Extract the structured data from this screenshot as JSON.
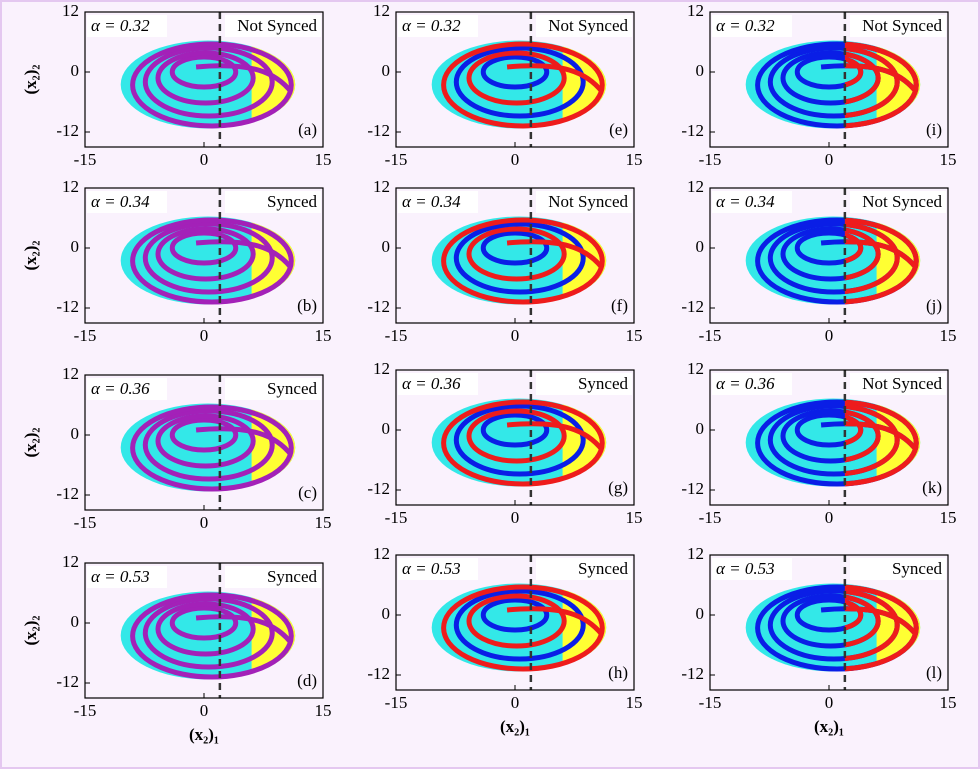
{
  "chart_data": [
    {
      "type": "phase",
      "annotation": "α = 0.32",
      "status": "Not Synced",
      "status_color": "#ff0000",
      "panel": "(a)",
      "ylabel": "(x₂)₂",
      "xlim": [
        -15,
        15
      ],
      "ylim": [
        -15,
        12
      ],
      "xticks": [
        -15,
        0,
        15
      ],
      "yticks": [
        -12,
        0,
        12
      ],
      "vline": 2,
      "palette": [
        "#33e8e8",
        "#ffff33",
        "#a321b8",
        "#a321b8"
      ]
    },
    {
      "type": "phase",
      "annotation": "α = 0.34",
      "status": "Synced",
      "status_color": "#1a8a1a",
      "panel": "(b)",
      "ylabel": "(x₂)₂",
      "xlim": [
        -15,
        15
      ],
      "ylim": [
        -15,
        12
      ],
      "xticks": [
        -15,
        0,
        15
      ],
      "yticks": [
        -12,
        0,
        12
      ],
      "vline": 2,
      "palette": [
        "#33e8e8",
        "#ffff33",
        "#a321b8",
        "#a321b8"
      ]
    },
    {
      "type": "phase",
      "annotation": "α = 0.36",
      "status": "Synced",
      "status_color": "#1a8a1a",
      "panel": "(c)",
      "ylabel": "(x₂)₂",
      "xlim": [
        -15,
        15
      ],
      "ylim": [
        -15,
        12
      ],
      "xticks": [
        -15,
        0,
        15
      ],
      "yticks": [
        -12,
        0,
        12
      ],
      "vline": 2,
      "palette": [
        "#33e8e8",
        "#ffff33",
        "#a321b8",
        "#a321b8"
      ]
    },
    {
      "type": "phase",
      "annotation": "α = 0.53",
      "status": "Synced",
      "status_color": "#1a8a1a",
      "panel": "(d)",
      "ylabel": "(x₂)₂",
      "xlabel": "(x₂)₁",
      "xlim": [
        -15,
        15
      ],
      "ylim": [
        -15,
        12
      ],
      "xticks": [
        -15,
        0,
        15
      ],
      "yticks": [
        -12,
        0,
        12
      ],
      "vline": 2,
      "palette": [
        "#33e8e8",
        "#ffff33",
        "#a321b8",
        "#a321b8"
      ]
    },
    {
      "type": "phase",
      "annotation": "α = 0.32",
      "status": "Not Synced",
      "status_color": "#ff0000",
      "panel": "(e)",
      "xlim": [
        -15,
        15
      ],
      "ylim": [
        -15,
        12
      ],
      "xticks": [
        -15,
        0,
        15
      ],
      "yticks": [
        -12,
        0,
        12
      ],
      "vline": 2,
      "palette": [
        "#33e8e8",
        "#ffff33",
        "#0a1ee6",
        "#ee1c1c"
      ]
    },
    {
      "type": "phase",
      "annotation": "α = 0.34",
      "status": "Not Synced",
      "status_color": "#ff0000",
      "panel": "(f)",
      "xlim": [
        -15,
        15
      ],
      "ylim": [
        -15,
        12
      ],
      "xticks": [
        -15,
        0,
        15
      ],
      "yticks": [
        -12,
        0,
        12
      ],
      "vline": 2,
      "palette": [
        "#33e8e8",
        "#ffff33",
        "#0a1ee6",
        "#ee1c1c"
      ]
    },
    {
      "type": "phase",
      "annotation": "α = 0.36",
      "status": "Synced",
      "status_color": "#1a8a1a",
      "panel": "(g)",
      "xlim": [
        -15,
        15
      ],
      "ylim": [
        -15,
        12
      ],
      "xticks": [
        -15,
        0,
        15
      ],
      "yticks": [
        -12,
        0,
        12
      ],
      "vline": 2,
      "palette": [
        "#33e8e8",
        "#ffff33",
        "#0a1ee6",
        "#ee1c1c"
      ]
    },
    {
      "type": "phase",
      "annotation": "α = 0.53",
      "status": "Synced",
      "status_color": "#1a8a1a",
      "panel": "(h)",
      "xlabel": "(x₂)₁",
      "xlim": [
        -15,
        15
      ],
      "ylim": [
        -15,
        12
      ],
      "xticks": [
        -15,
        0,
        15
      ],
      "yticks": [
        -12,
        0,
        12
      ],
      "vline": 2,
      "palette": [
        "#33e8e8",
        "#ffff33",
        "#0a1ee6",
        "#ee1c1c"
      ]
    },
    {
      "type": "phase",
      "annotation": "α = 0.32",
      "status": "Not Synced",
      "status_color": "#ff0000",
      "panel": "(i)",
      "xlim": [
        -15,
        15
      ],
      "ylim": [
        -15,
        12
      ],
      "xticks": [
        -15,
        0,
        15
      ],
      "yticks": [
        -12,
        0,
        12
      ],
      "vline": 2,
      "palette": [
        "#33e8e8",
        "#ffff33",
        "#0a1ee6",
        "#ee1c1c"
      ]
    },
    {
      "type": "phase",
      "annotation": "α = 0.34",
      "status": "Not Synced",
      "status_color": "#ff0000",
      "panel": "(j)",
      "xlim": [
        -15,
        15
      ],
      "ylim": [
        -15,
        12
      ],
      "xticks": [
        -15,
        0,
        15
      ],
      "yticks": [
        -12,
        0,
        12
      ],
      "vline": 2,
      "palette": [
        "#33e8e8",
        "#ffff33",
        "#0a1ee6",
        "#ee1c1c"
      ]
    },
    {
      "type": "phase",
      "annotation": "α = 0.36",
      "status": "Not Synced",
      "status_color": "#ff0000",
      "panel": "(k)",
      "xlim": [
        -15,
        15
      ],
      "ylim": [
        -15,
        12
      ],
      "xticks": [
        -15,
        0,
        15
      ],
      "yticks": [
        -12,
        0,
        12
      ],
      "vline": 2,
      "palette": [
        "#33e8e8",
        "#ffff33",
        "#0a1ee6",
        "#ee1c1c"
      ]
    },
    {
      "type": "phase",
      "annotation": "α = 0.53",
      "status": "Synced",
      "status_color": "#1a8a1a",
      "panel": "(l)",
      "xlabel": "(x₂)₁",
      "xlim": [
        -15,
        15
      ],
      "ylim": [
        -15,
        12
      ],
      "xticks": [
        -15,
        0,
        15
      ],
      "yticks": [
        -12,
        0,
        12
      ],
      "vline": 2,
      "palette": [
        "#33e8e8",
        "#ffff33",
        "#0a1ee6",
        "#ee1c1c"
      ]
    }
  ]
}
